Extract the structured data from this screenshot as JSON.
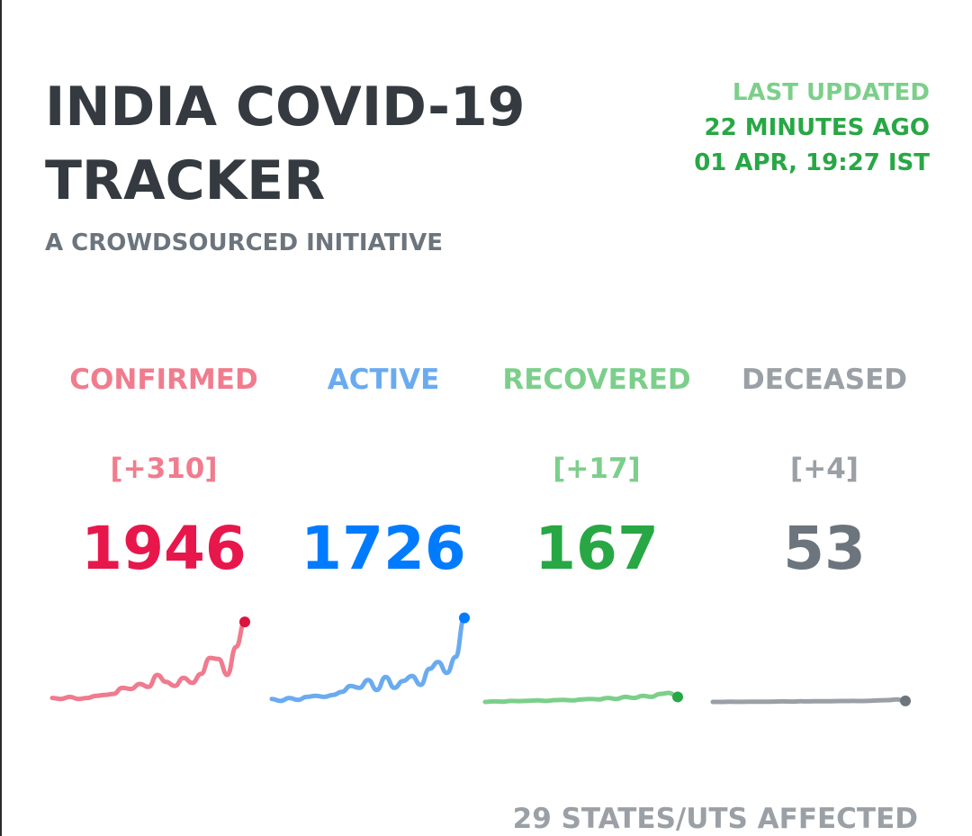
{
  "header": {
    "title_line1": "INDIA COVID-19",
    "title_line2": "TRACKER",
    "subtitle": "A CROWDSOURCED INITIATIVE"
  },
  "last_updated": {
    "label": "LAST UPDATED",
    "relative": "22 MINUTES AGO",
    "timestamp": "01 APR, 19:27 IST"
  },
  "stats": [
    {
      "label": "CONFIRMED",
      "delta": "[+310]",
      "count": "1946",
      "label_color": "#f07c8d",
      "count_color": "#e8174b",
      "line_color": "#f07a8e",
      "dot_color": "#dc143c",
      "trend": [
        4,
        3,
        5,
        3,
        4,
        6,
        7,
        8,
        14,
        13,
        18,
        15,
        27,
        20,
        16,
        24,
        19,
        28,
        44,
        43,
        27,
        55,
        80
      ]
    },
    {
      "label": "ACTIVE",
      "delta": "",
      "count": "1726",
      "label_color": "#6aabf0",
      "count_color": "#007bff",
      "line_color": "#6aabf0",
      "dot_color": "#007bff",
      "trend": [
        3,
        1,
        4,
        2,
        5,
        6,
        5,
        7,
        10,
        16,
        14,
        22,
        12,
        25,
        14,
        21,
        26,
        17,
        33,
        40,
        29,
        45,
        84
      ]
    },
    {
      "label": "RECOVERED",
      "delta": "[+17]",
      "count": "167",
      "label_color": "#7ccf8b",
      "count_color": "#28a745",
      "line_color": "#7ccf8b",
      "dot_color": "#28a745",
      "trend": [
        0,
        0.5,
        0.3,
        1,
        0.8,
        1.2,
        1.5,
        1,
        1.8,
        2,
        1.5,
        2.5,
        3,
        2.5,
        4,
        3,
        5,
        4,
        6,
        5,
        8,
        9,
        5
      ]
    },
    {
      "label": "DECEASED",
      "delta": "[+4]",
      "count": "53",
      "label_color": "#9aa0a6",
      "count_color": "#6c757d",
      "line_color": "#9aa0a6",
      "dot_color": "#6c757d",
      "trend": [
        0,
        0,
        0.2,
        0.1,
        0.2,
        0.3,
        0.2,
        0.4,
        0.5,
        0.4,
        0.6,
        0.5,
        0.7,
        0.6,
        0.8,
        0.9,
        1,
        0.9,
        1.2,
        1.5,
        1.8,
        2.5,
        1
      ]
    }
  ],
  "footer": {
    "affected": "29 STATES/UTS AFFECTED"
  }
}
